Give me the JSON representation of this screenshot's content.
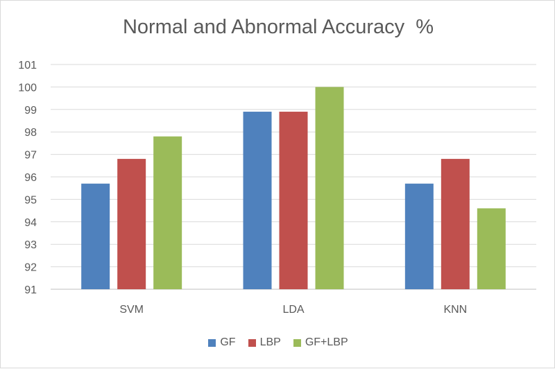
{
  "chart_data": {
    "type": "bar",
    "title": "Normal and Abnormal Accuracy  %",
    "categories": [
      "SVM",
      "LDA",
      "KNN"
    ],
    "series": [
      {
        "name": "GF",
        "color": "#4f81bd",
        "values": [
          95.7,
          98.9,
          95.7
        ]
      },
      {
        "name": "LBP",
        "color": "#c0504d",
        "values": [
          96.8,
          98.9,
          96.8
        ]
      },
      {
        "name": "GF+LBP",
        "color": "#9bbb59",
        "values": [
          97.8,
          100,
          94.6
        ]
      }
    ],
    "ylim": [
      91,
      101
    ],
    "yticks": [
      91,
      92,
      93,
      94,
      95,
      96,
      97,
      98,
      99,
      100,
      101
    ],
    "grid": true,
    "legend_position": "bottom"
  }
}
